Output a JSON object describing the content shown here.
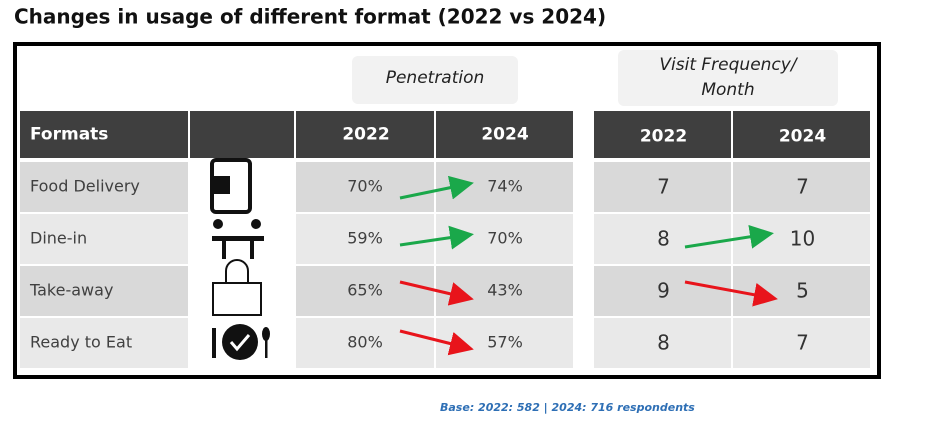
{
  "title": "Changes in usage of different format (2022 vs 2024)",
  "penetration_heading": "Penetration",
  "visit_heading": [
    "Visit Frequency/",
    "Month"
  ],
  "penetration_table": {
    "headers": [
      "Formats",
      "2022",
      "2024"
    ],
    "rows": [
      [
        "Food Delivery",
        "70%",
        "74%"
      ],
      [
        "Dine-in",
        "59%",
        "70%"
      ],
      [
        "Take-away",
        "65%",
        "43%"
      ],
      [
        "Ready to Eat",
        "80%",
        "57%"
      ]
    ]
  },
  "visit_table": {
    "headers": [
      "2022",
      "2024"
    ],
    "rows": [
      [
        "7",
        "7"
      ],
      [
        "8",
        "10"
      ],
      [
        "9",
        "5"
      ],
      [
        "8",
        "7"
      ]
    ]
  },
  "footnote": "Base: 2022: 582 | 2024: 716 respondents"
}
